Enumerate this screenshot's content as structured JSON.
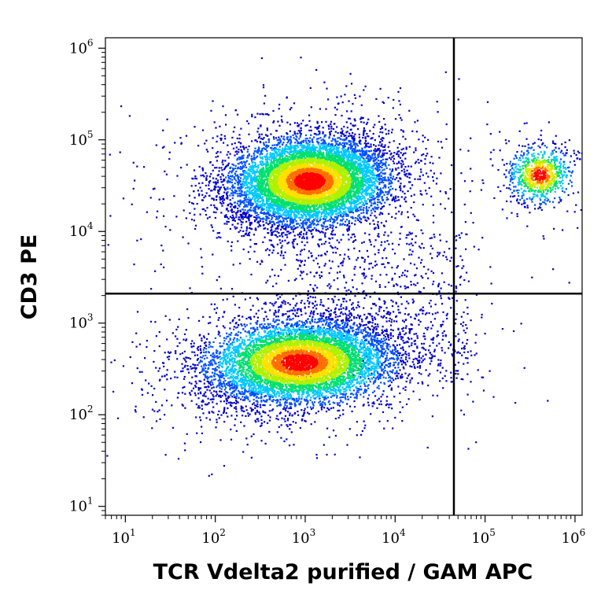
{
  "chart_data": {
    "type": "scatter",
    "subtype": "flow-cytometry density dot plot",
    "xlabel": "TCR Vdelta2 purified / GAM APC",
    "ylabel": "CD3 PE",
    "x_scale": "log",
    "y_scale": "log",
    "xlim": [
      6,
      1200000
    ],
    "ylim": [
      8,
      1300000
    ],
    "x_ticks": [
      {
        "base": "10",
        "exp": "1",
        "value": 10
      },
      {
        "base": "10",
        "exp": "2",
        "value": 100
      },
      {
        "base": "10",
        "exp": "3",
        "value": 1000
      },
      {
        "base": "10",
        "exp": "4",
        "value": 10000
      },
      {
        "base": "10",
        "exp": "5",
        "value": 100000
      },
      {
        "base": "10",
        "exp": "6",
        "value": 1000000
      }
    ],
    "y_ticks": [
      {
        "base": "10",
        "exp": "1",
        "value": 10
      },
      {
        "base": "10",
        "exp": "2",
        "value": 100
      },
      {
        "base": "10",
        "exp": "3",
        "value": 1000
      },
      {
        "base": "10",
        "exp": "4",
        "value": 10000
      },
      {
        "base": "10",
        "exp": "5",
        "value": 100000
      },
      {
        "base": "10",
        "exp": "6",
        "value": 1000000
      }
    ],
    "quadrant_gates": {
      "x": 45000,
      "y": 2100
    },
    "populations": [
      {
        "center_x": 1100,
        "center_y": 36000,
        "spread_x_decades": 0.42,
        "spread_y_decades": 0.23,
        "count": 9000,
        "density": "high"
      },
      {
        "center_x": 850,
        "center_y": 380,
        "spread_x_decades": 0.5,
        "spread_y_decades": 0.22,
        "count": 8000,
        "density": "high"
      },
      {
        "center_x": 400000,
        "center_y": 42000,
        "spread_x_decades": 0.17,
        "spread_y_decades": 0.15,
        "count": 900,
        "density": "medium"
      }
    ],
    "density_colors": [
      "#0000cc",
      "#0050ff",
      "#00c8ff",
      "#00e070",
      "#b0f000",
      "#ffe000",
      "#ff7000",
      "#ff0000"
    ],
    "gate_color": "#000000",
    "grid": false,
    "legend": "none"
  }
}
